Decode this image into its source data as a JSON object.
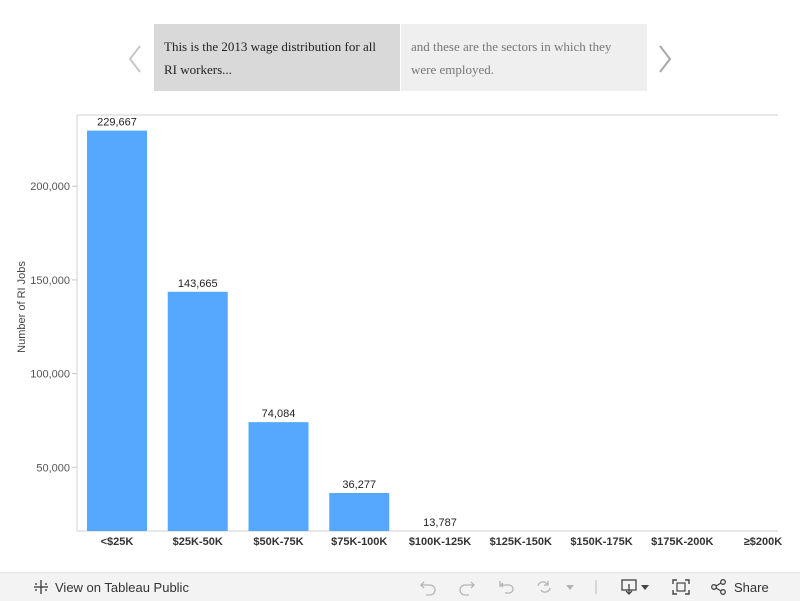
{
  "story": {
    "points": [
      "This is the 2013 wage distribution for all RI workers...",
      "and these are the sectors in which they were employed."
    ],
    "active_index": 0
  },
  "chart_data": {
    "type": "bar",
    "categories": [
      "<$25K",
      "$25K-50K",
      "$50K-75K",
      "$75K-100K",
      "$100K-125K",
      "$125K-150K",
      "$150K-175K",
      "$175K-200K",
      "≥$200K"
    ],
    "values": [
      229667,
      143665,
      74084,
      36277,
      13787,
      null,
      null,
      null,
      null
    ],
    "data_labels": [
      "229,667",
      "143,665",
      "74,084",
      "36,277",
      "13,787",
      "",
      "",
      "",
      ""
    ],
    "ylabel": "Number of RI Jobs",
    "xlabel": "",
    "title": "",
    "yticks": [
      50000,
      100000,
      150000,
      200000
    ],
    "ytick_labels": [
      "50,000",
      "100,000",
      "150,000",
      "200,000"
    ],
    "ylim": [
      16000,
      238000
    ],
    "bar_color": "#55a8fd",
    "grid": false
  },
  "toolbar": {
    "view_label": "View on Tableau Public",
    "share_label": "Share",
    "icons": [
      "tableau-icon",
      "undo-icon",
      "redo-icon",
      "revert-icon",
      "refresh-icon",
      "dropdown-icon",
      "download-icon",
      "fullscreen-icon",
      "share-icon"
    ]
  }
}
